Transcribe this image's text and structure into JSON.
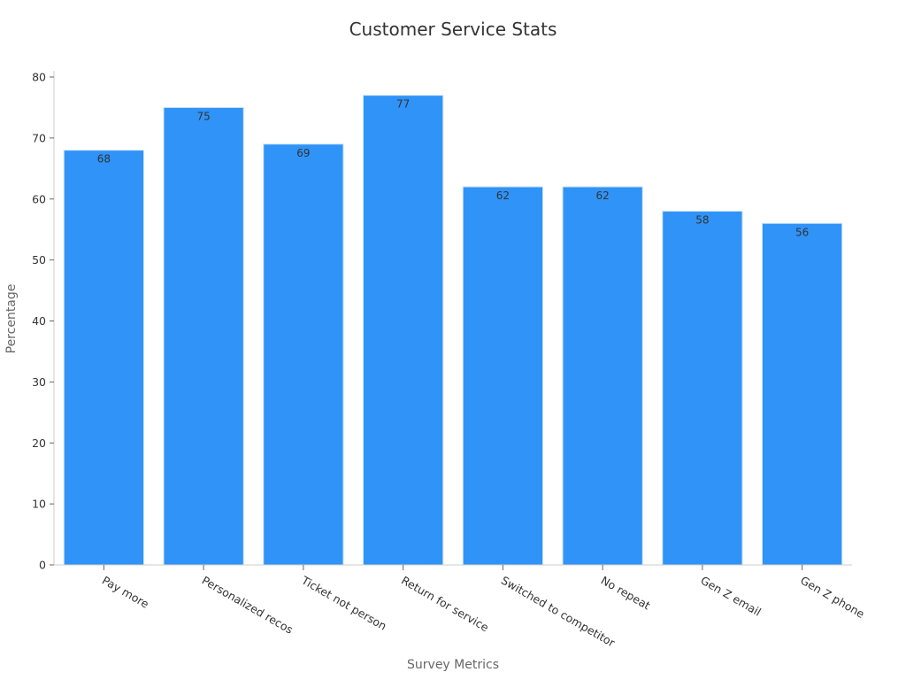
{
  "chart_data": {
    "type": "bar",
    "title": "Customer Service Stats",
    "xlabel": "Survey Metrics",
    "ylabel": "Percentage",
    "categories": [
      "Pay more",
      "Personalized recos",
      "Ticket not person",
      "Return for service",
      "Switched to competitor",
      "No repeat",
      "Gen Z email",
      "Gen Z phone"
    ],
    "values": [
      68,
      75,
      69,
      77,
      62,
      62,
      58,
      56
    ],
    "ylim": [
      0,
      80
    ],
    "yticks": [
      0,
      10,
      20,
      30,
      40,
      50,
      60,
      70,
      80
    ],
    "grid": false,
    "legend": "none",
    "bar_color": "#2f93f8",
    "bar_edge_color": "#c9e1f7"
  }
}
